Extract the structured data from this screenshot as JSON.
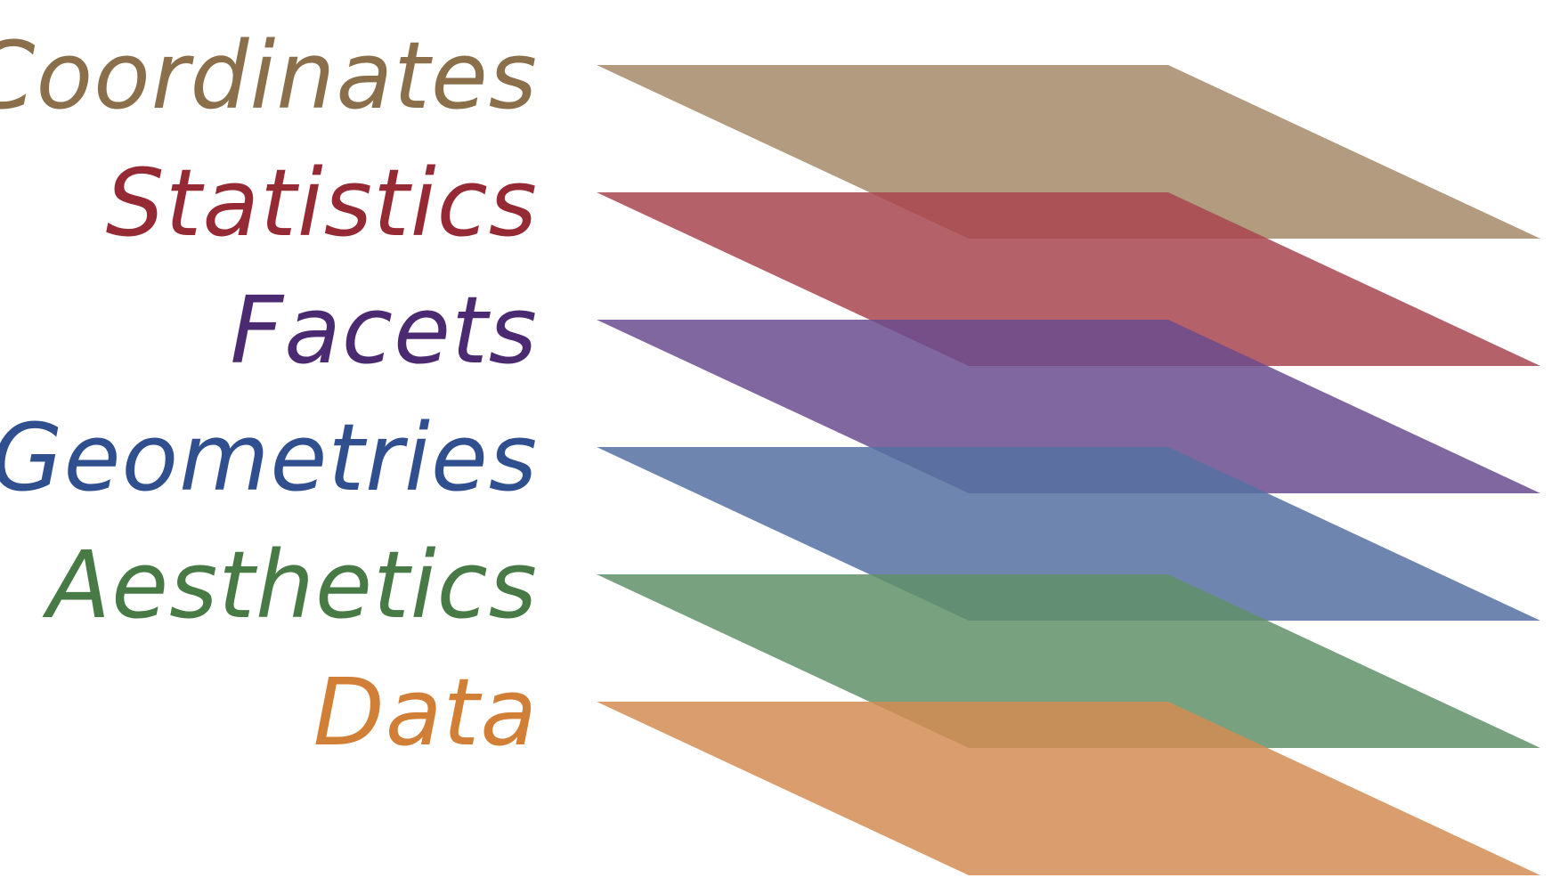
{
  "layers": [
    {
      "label": "Coordinates",
      "color": "#8b6f4a",
      "fill": "#a58a67"
    },
    {
      "label": "Statistics",
      "color": "#952a35",
      "fill": "#a8454f"
    },
    {
      "label": "Facets",
      "color": "#4b2a72",
      "fill": "#6b4c8e"
    },
    {
      "label": "Geometries",
      "color": "#2f4f8e",
      "fill": "#5571a1"
    },
    {
      "label": "Aesthetics",
      "color": "#477a45",
      "fill": "#60906a"
    },
    {
      "label": "Data",
      "color": "#d17f36",
      "fill": "#d48c53"
    }
  ]
}
